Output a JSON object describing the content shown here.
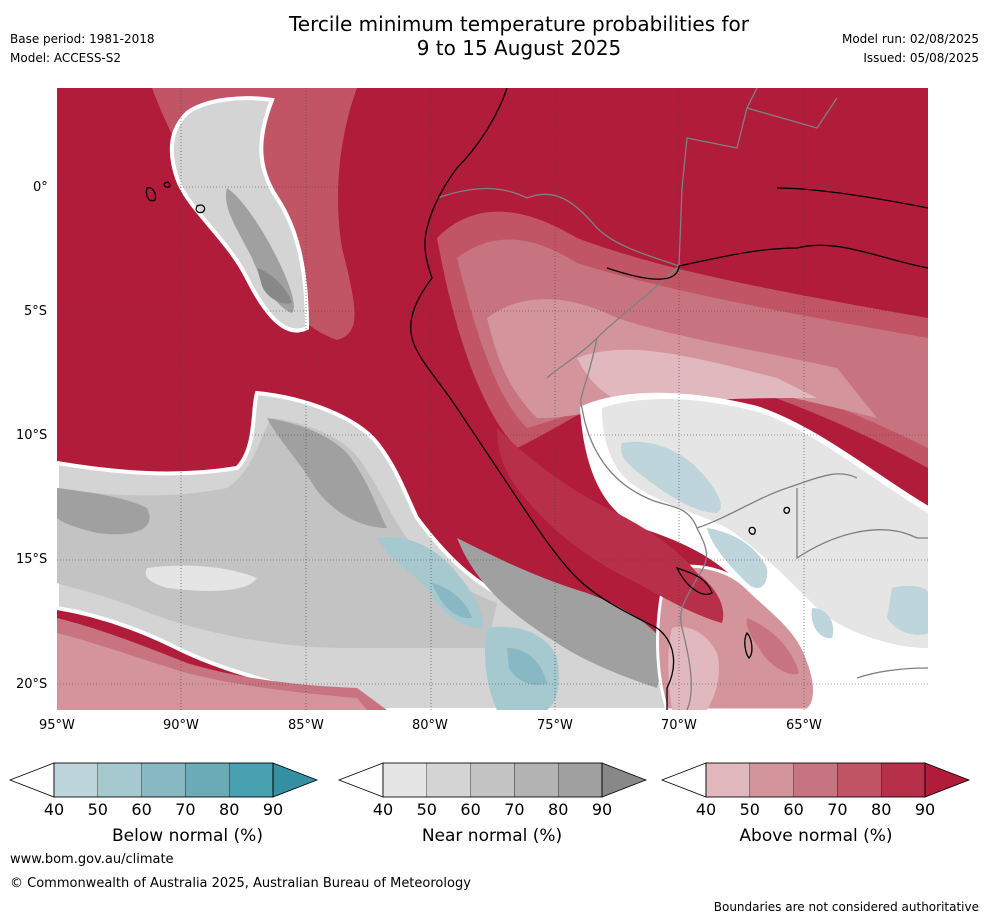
{
  "header": {
    "title_line1": "Tercile minimum temperature probabilities for",
    "title_line2": "9 to 15 August 2025",
    "base_period": "Base period: 1981-2018",
    "model": "Model: ACCESS-S2",
    "model_run": "Model run: 02/08/2025",
    "issued": "Issued: 05/08/2025"
  },
  "map": {
    "lat_ticks": [
      "0°",
      "5°S",
      "10°S",
      "15°S",
      "20°S"
    ],
    "lon_ticks": [
      "95°W",
      "90°W",
      "85°W",
      "80°W",
      "75°W",
      "70°W",
      "65°W"
    ]
  },
  "colorbars": [
    {
      "label": "Below normal (%)",
      "ticks": [
        "40",
        "50",
        "60",
        "70",
        "80",
        "90"
      ],
      "colors": [
        "#bdd5db",
        "#a6c8cf",
        "#88b8c3",
        "#6aabb7",
        "#48a0b0",
        "#3590a2"
      ]
    },
    {
      "label": "Near normal (%)",
      "ticks": [
        "40",
        "50",
        "60",
        "70",
        "80",
        "90"
      ],
      "colors": [
        "#e5e5e5",
        "#d4d4d4",
        "#c3c3c3",
        "#b3b3b3",
        "#a0a0a0",
        "#888888"
      ]
    },
    {
      "label": "Above normal (%)",
      "ticks": [
        "40",
        "50",
        "60",
        "70",
        "80",
        "90"
      ],
      "colors": [
        "#e1b8be",
        "#d4949c",
        "#c87480",
        "#c15565",
        "#b72f48",
        "#b11c3a"
      ]
    }
  ],
  "footer": {
    "url": "www.bom.gov.au/climate",
    "copyright": "© Commonwealth of Australia 2025, Australian Bureau of Meteorology",
    "disclaimer": "Boundaries are not considered authoritative"
  },
  "colors": {
    "above_90": "#b11c3a",
    "near_background": "#e5e5e5",
    "border": "#808080",
    "coast": "#000000"
  }
}
